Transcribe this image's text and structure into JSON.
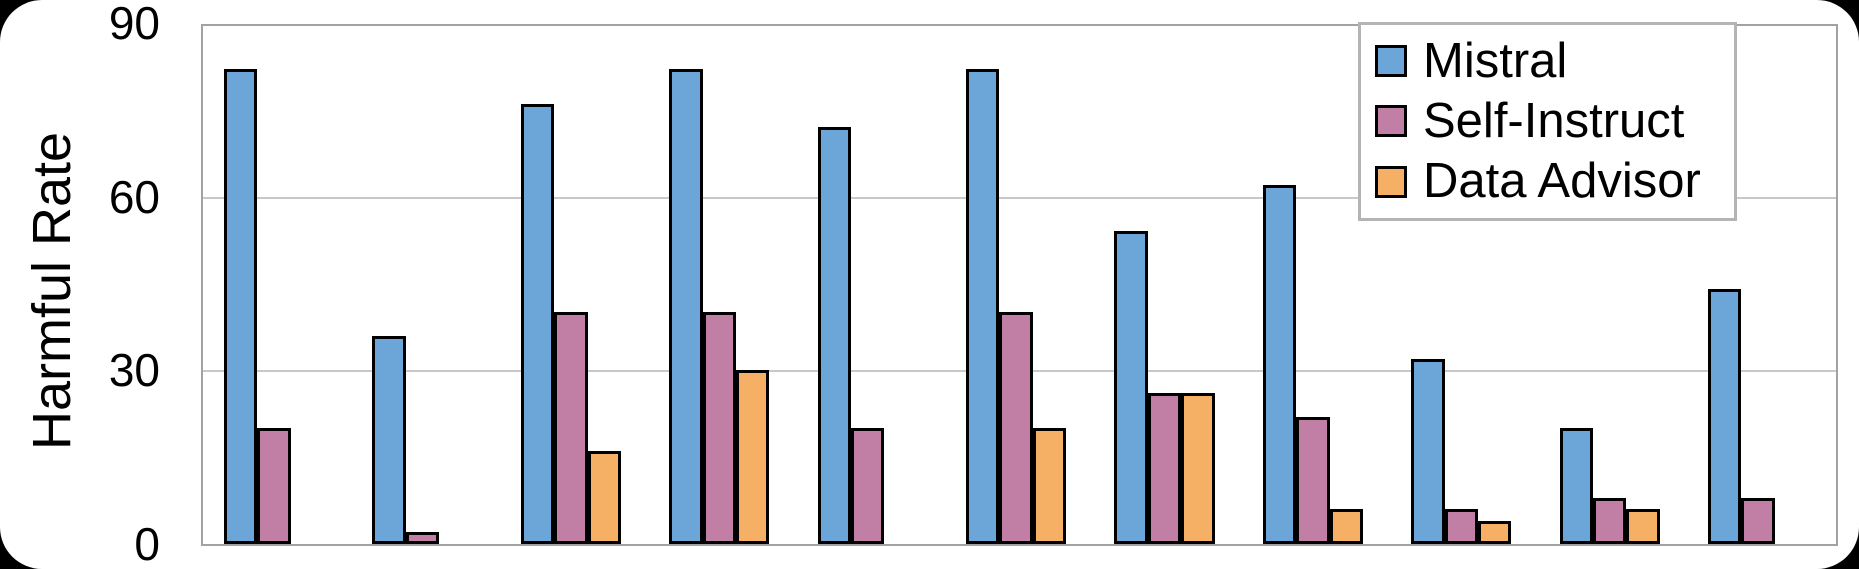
{
  "figure": {
    "outer_background": "#000000",
    "panel_background": "#ffffff"
  },
  "chart_data": {
    "type": "bar",
    "title": "",
    "y_axis": {
      "title": "Harmful Rate",
      "range": [
        0,
        90
      ],
      "ticks": [
        {
          "value": 0,
          "label": "0"
        },
        {
          "value": 30,
          "label": "30"
        },
        {
          "value": 60,
          "label": "60"
        },
        {
          "value": 90,
          "label": "90"
        }
      ]
    },
    "x_axis": {
      "tick_labels_visible": false,
      "group_count": 11,
      "categories": [
        "",
        "",
        "",
        "",
        "",
        "",
        "",
        "",
        "",
        "",
        ""
      ]
    },
    "legend": {
      "position": "top-right",
      "entries": [
        "Mistral",
        "Self-Instruct",
        "Data Advisor"
      ]
    },
    "series": [
      {
        "name": "Mistral",
        "color": "#6CA5D8",
        "values": [
          82,
          36,
          76,
          82,
          72,
          82,
          54,
          62,
          32,
          20,
          44
        ]
      },
      {
        "name": "Self-Instruct",
        "color": "#C17FA5",
        "values": [
          20,
          2,
          40,
          40,
          20,
          40,
          26,
          22,
          6,
          8,
          8
        ]
      },
      {
        "name": "Data Advisor",
        "color": "#F6B065",
        "values": [
          0,
          0,
          16,
          30,
          0,
          20,
          26,
          6,
          4,
          6,
          0
        ]
      }
    ],
    "grid": true,
    "grid_color": "#c8c8c8",
    "axis_color": "#a2a2a2",
    "bar_border_color": "#000000"
  }
}
